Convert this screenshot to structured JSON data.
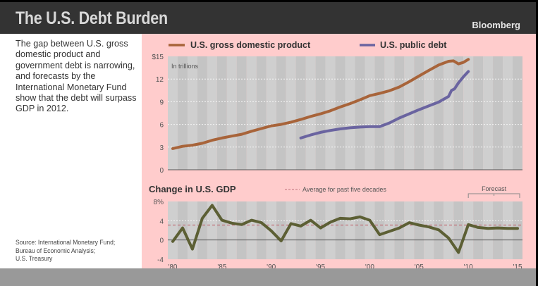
{
  "header": {
    "title": "The U.S. Debt Burden",
    "brand": "Bloomberg"
  },
  "sidebar": {
    "description": "The gap between U.S. gross domestic product and government debt is narrowing, and forecasts by the International Monetary Fund show that the debt will surpass GDP in 2012.",
    "source_lines": [
      "Source: International Monetary Fund;",
      "Bureau of Economic Analysis;",
      "U.S. Treasury"
    ]
  },
  "colors": {
    "header_bg": "#333333",
    "panel_bg": "#ffcccc",
    "gdp": "#a8643a",
    "debt": "#6a64a0",
    "growth": "#5c5f34",
    "average": "#c0707a"
  },
  "chart_data": [
    {
      "type": "line",
      "title": "",
      "unit_label": "In trillions",
      "ylabel": "",
      "xlabel": "",
      "ylim": [
        0,
        15
      ],
      "xlim": [
        1979.5,
        2015.5
      ],
      "yticks": [
        0,
        3,
        6,
        9,
        12,
        15
      ],
      "ytick_labels": [
        "0",
        "3",
        "6",
        "9",
        "12",
        "$15"
      ],
      "grid": true,
      "legend_position": "top",
      "series": [
        {
          "name": "U.S. gross domestic product",
          "color_key": "gdp",
          "x": [
            1980,
            1981,
            1982,
            1983,
            1984,
            1985,
            1986,
            1987,
            1988,
            1989,
            1990,
            1991,
            1992,
            1993,
            1994,
            1995,
            1996,
            1997,
            1998,
            1999,
            2000,
            2001,
            2002,
            2003,
            2004,
            2005,
            2006,
            2007,
            2008,
            2008.5,
            2009,
            2009.5,
            2010
          ],
          "values": [
            2.8,
            3.1,
            3.25,
            3.5,
            3.9,
            4.2,
            4.45,
            4.7,
            5.1,
            5.45,
            5.8,
            6.0,
            6.3,
            6.65,
            7.05,
            7.4,
            7.8,
            8.3,
            8.75,
            9.25,
            9.8,
            10.1,
            10.45,
            10.95,
            11.65,
            12.4,
            13.15,
            13.85,
            14.35,
            14.4,
            14.0,
            14.2,
            14.6
          ]
        },
        {
          "name": "U.S. public debt",
          "color_key": "debt",
          "x": [
            1993,
            1994,
            1995,
            1996,
            1997,
            1998,
            1999,
            2000,
            2001,
            2002,
            2003,
            2004,
            2005,
            2006,
            2007,
            2008,
            2008.3,
            2008.6,
            2009,
            2009.5,
            2010
          ],
          "values": [
            4.2,
            4.6,
            4.95,
            5.2,
            5.4,
            5.55,
            5.65,
            5.7,
            5.7,
            6.2,
            6.85,
            7.4,
            7.95,
            8.45,
            8.95,
            9.7,
            10.5,
            10.7,
            11.5,
            12.3,
            13.0
          ]
        }
      ]
    },
    {
      "type": "line",
      "title": "Change in U.S. GDP",
      "ylabel": "",
      "xlabel": "",
      "ylim": [
        -4,
        8
      ],
      "xlim": [
        1979.5,
        2015.5
      ],
      "yticks": [
        -4,
        0,
        4,
        8
      ],
      "ytick_labels": [
        "-4",
        "0",
        "4",
        "8%"
      ],
      "xticks": [
        1980,
        1985,
        1990,
        1995,
        2000,
        2005,
        2010,
        2015
      ],
      "xtick_labels": [
        "'80",
        "'85",
        "'90",
        "'95",
        "'00",
        "'05",
        "'10",
        "'15"
      ],
      "grid": true,
      "average_label": "Average for past five decades",
      "average_value": 3.1,
      "forecast_label": "Forecast",
      "forecast_range": [
        2010,
        2015
      ],
      "series": [
        {
          "name": "Change in U.S. GDP",
          "color_key": "growth",
          "x": [
            1980,
            1981,
            1982,
            1983,
            1984,
            1985,
            1986,
            1987,
            1988,
            1989,
            1990,
            1991,
            1992,
            1993,
            1994,
            1995,
            1996,
            1997,
            1998,
            1999,
            2000,
            2001,
            2002,
            2003,
            2004,
            2005,
            2006,
            2007,
            2008,
            2009,
            2010,
            2011,
            2012,
            2013,
            2014,
            2015
          ],
          "values": [
            -0.3,
            2.5,
            -1.9,
            4.5,
            7.2,
            4.1,
            3.5,
            3.2,
            4.1,
            3.6,
            1.9,
            -0.2,
            3.4,
            2.9,
            4.1,
            2.5,
            3.7,
            4.5,
            4.4,
            4.8,
            4.1,
            1.1,
            1.8,
            2.5,
            3.6,
            3.1,
            2.7,
            2.1,
            0.4,
            -2.6,
            3.2,
            2.6,
            2.4,
            2.5,
            2.4,
            2.4
          ]
        }
      ]
    }
  ]
}
